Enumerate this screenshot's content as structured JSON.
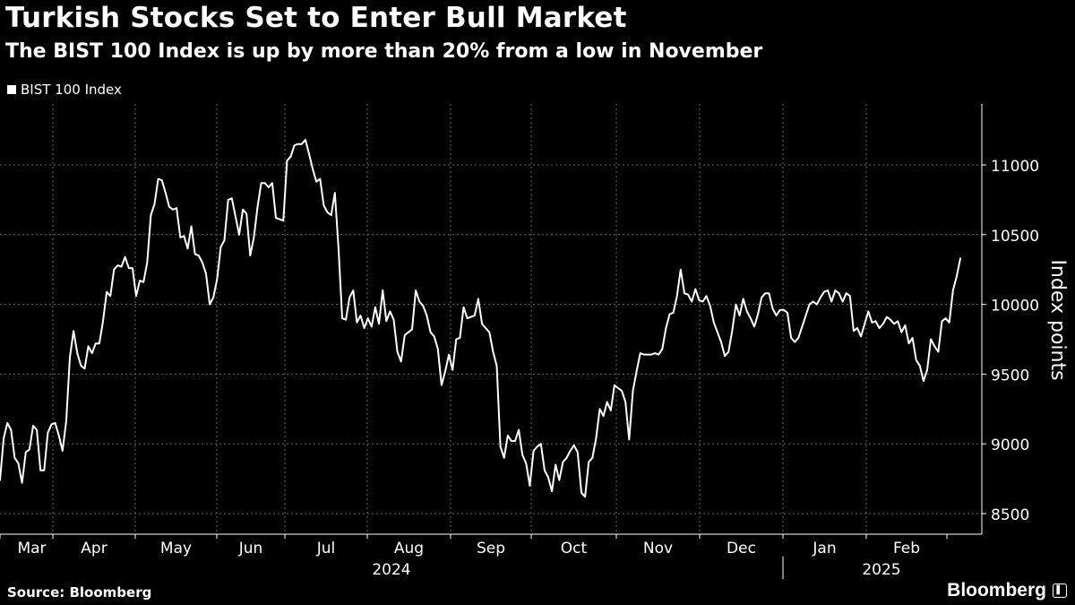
{
  "header": {
    "title": "Turkish Stocks Set to Enter Bull Market",
    "subtitle": "The BIST 100 Index is up by more than 20% from a low in November"
  },
  "legend": {
    "label": "BIST 100 Index"
  },
  "footer": {
    "source": "Source: Bloomberg",
    "brand": "Bloomberg"
  },
  "chart_data": {
    "type": "line",
    "title": "Turkish Stocks Set to Enter Bull Market",
    "subtitle": "The BIST 100 Index is up by more than 20% from a low in November",
    "ylabel": "Index points",
    "xlabel": "",
    "ylim": [
      8350,
      11400
    ],
    "yticks": [
      8500,
      9000,
      9500,
      10000,
      10500,
      11000
    ],
    "x_tick_labels": [
      "Mar",
      "Apr",
      "May",
      "Jun",
      "Jul",
      "Aug",
      "Sep",
      "Oct",
      "Nov",
      "Dec",
      "Jan",
      "Feb"
    ],
    "year_labels": [
      "2024",
      "2025"
    ],
    "grid": true,
    "legend_position": "top-left",
    "colors": {
      "background": "#000000",
      "line": "#ffffff",
      "grid": "#666666"
    },
    "series": [
      {
        "name": "BIST 100 Index",
        "values": [
          8740,
          9040,
          9150,
          9100,
          8900,
          8860,
          8720,
          8940,
          8960,
          9130,
          9100,
          8810,
          8810,
          9080,
          9140,
          9150,
          9060,
          8950,
          9160,
          9620,
          9810,
          9650,
          9560,
          9540,
          9700,
          9650,
          9720,
          9720,
          9880,
          10090,
          10060,
          10250,
          10280,
          10270,
          10340,
          10260,
          10260,
          10060,
          10170,
          10160,
          10300,
          10640,
          10720,
          10900,
          10890,
          10800,
          10700,
          10680,
          10690,
          10480,
          10490,
          10400,
          10560,
          10360,
          10350,
          10300,
          10220,
          10000,
          10050,
          10180,
          10410,
          10460,
          10750,
          10760,
          10630,
          10500,
          10680,
          10650,
          10350,
          10480,
          10700,
          10870,
          10870,
          10840,
          10870,
          10620,
          10610,
          10600,
          11030,
          11060,
          11140,
          11150,
          11150,
          11180,
          11080,
          10970,
          10880,
          10900,
          10710,
          10660,
          10640,
          10800,
          10400,
          9900,
          9890,
          10050,
          10100,
          9870,
          9920,
          9830,
          9900,
          9840,
          9980,
          9860,
          10100,
          9880,
          9950,
          9890,
          9660,
          9590,
          9780,
          9800,
          9820,
          10100,
          10020,
          9990,
          9920,
          9800,
          9770,
          9680,
          9420,
          9520,
          9640,
          9530,
          9750,
          9760,
          9980,
          9900,
          9910,
          9920,
          10040,
          9860,
          9830,
          9800,
          9660,
          9560,
          8980,
          8900,
          9060,
          9020,
          9020,
          9100,
          8920,
          8860,
          8700,
          8950,
          8980,
          9000,
          8810,
          8760,
          8660,
          8850,
          8740,
          8870,
          8900,
          8950,
          8990,
          8940,
          8650,
          8620,
          8870,
          8900,
          9040,
          9250,
          9200,
          9300,
          9240,
          9420,
          9400,
          9380,
          9300,
          9030,
          9380,
          9520,
          9650,
          9640,
          9640,
          9640,
          9650,
          9640,
          9680,
          9830,
          9930,
          9940,
          10060,
          10250,
          10080,
          10070,
          10020,
          10110,
          10030,
          10020,
          10060,
          9990,
          9870,
          9800,
          9730,
          9630,
          9660,
          9810,
          10000,
          9920,
          10040,
          9950,
          9900,
          9840,
          9930,
          10050,
          10080,
          10080,
          9970,
          9920,
          9960,
          9960,
          9940,
          9760,
          9730,
          9760,
          9840,
          9920,
          10000,
          10020,
          10000,
          10050,
          10090,
          10100,
          10020,
          10100,
          10080,
          10020,
          10080,
          10060,
          9810,
          9830,
          9770,
          9860,
          9950,
          9870,
          9880,
          9830,
          9860,
          9910,
          9890,
          9860,
          9880,
          9800,
          9850,
          9720,
          9760,
          9600,
          9560,
          9450,
          9530,
          9750,
          9700,
          9660,
          9880,
          9900,
          9870,
          10100,
          10200,
          10330
        ]
      }
    ]
  }
}
